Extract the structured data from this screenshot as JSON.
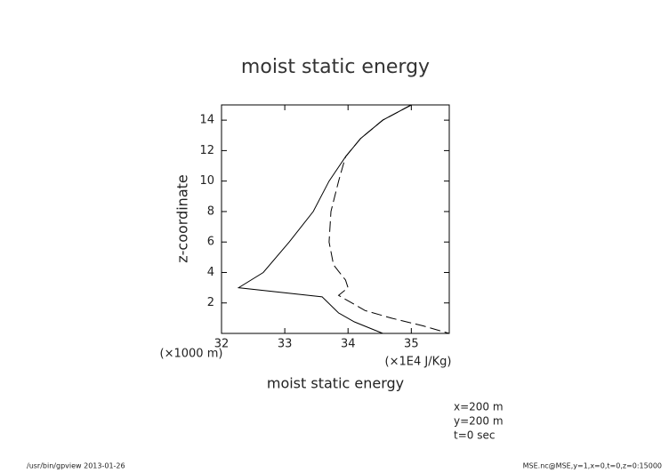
{
  "chart_data": {
    "type": "line",
    "title": "moist static energy",
    "x_label": "moist static energy",
    "x_unit": "(×1E4 J/Kg)",
    "y_label": "z-coordinate",
    "y_unit": "(×1000 m)",
    "xlim": [
      32,
      35.6
    ],
    "ylim": [
      0,
      15
    ],
    "xticks": [
      32,
      33,
      34,
      35
    ],
    "yticks": [
      2,
      4,
      6,
      8,
      10,
      12,
      14
    ],
    "series": [
      {
        "color": "#000000",
        "dashed": false,
        "x": [
          35.0,
          34.55,
          34.2,
          33.96,
          33.7,
          33.45,
          33.07,
          32.66,
          32.27,
          33.59,
          33.85,
          34.1,
          34.55
        ],
        "values": [
          15,
          14,
          12.8,
          11.6,
          10,
          8,
          6,
          4,
          3,
          2.4,
          1.34,
          0.76,
          0
        ]
      },
      {
        "color": "#000000",
        "dashed": true,
        "x": [
          35.0,
          34.55,
          34.2,
          33.96,
          33.85,
          33.73,
          33.7,
          33.77,
          33.96,
          34.0,
          33.85,
          34.27,
          34.69,
          35.18,
          35.6
        ],
        "values": [
          15,
          14,
          12.8,
          11.6,
          10,
          8,
          6,
          4.5,
          3.5,
          3,
          2.5,
          1.5,
          1,
          0.5,
          0
        ]
      }
    ],
    "annotations": [
      "x=200 m",
      "y=200 m",
      "t=0 sec"
    ],
    "footer_left": "/usr/bin/gpview  2013-01-26",
    "footer_right": "MSE.nc@MSE,y=1,x=0,t=0,z=0:15000"
  }
}
